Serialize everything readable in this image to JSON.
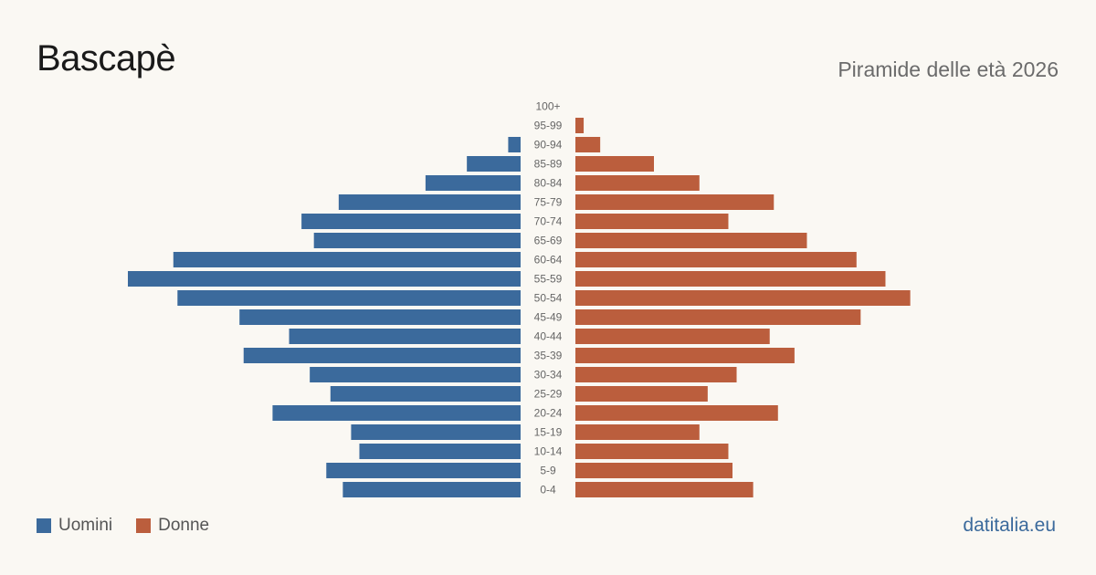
{
  "header": {
    "title": "Bascapè",
    "subtitle": "Piramide delle età 2026"
  },
  "legend": {
    "items": [
      {
        "label": "Uomini",
        "color": "#3b6a9c"
      },
      {
        "label": "Donne",
        "color": "#bb5e3d"
      }
    ]
  },
  "footer": {
    "source": "datitalia.eu"
  },
  "chart_data": {
    "type": "bar",
    "orientation": "horizontal-pyramid",
    "categories": [
      "100+",
      "95-99",
      "90-94",
      "85-89",
      "80-84",
      "75-79",
      "70-74",
      "65-69",
      "60-64",
      "55-59",
      "50-54",
      "45-49",
      "40-44",
      "35-39",
      "30-34",
      "25-29",
      "20-24",
      "15-19",
      "10-14",
      "5-9",
      "0-4"
    ],
    "series": [
      {
        "name": "Uomini",
        "color": "#3b6a9c",
        "values": [
          0,
          0,
          3,
          13,
          23,
          44,
          53,
          50,
          84,
          95,
          83,
          68,
          56,
          67,
          51,
          46,
          60,
          41,
          39,
          47,
          43
        ]
      },
      {
        "name": "Donne",
        "color": "#bb5e3d",
        "values": [
          0,
          2,
          6,
          19,
          30,
          48,
          37,
          56,
          68,
          75,
          81,
          69,
          47,
          53,
          39,
          32,
          49,
          30,
          37,
          38,
          43
        ]
      }
    ],
    "xlim": [
      0,
      95
    ],
    "grid": false,
    "legend_position": "bottom-left"
  }
}
